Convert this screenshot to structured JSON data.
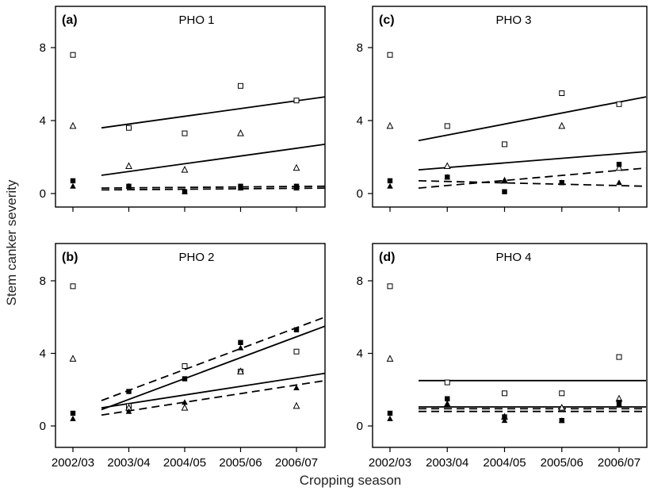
{
  "chart_data": {
    "type": "scatter",
    "ylabel": "Stem canker severity",
    "xlabel": "Cropping season",
    "categories": [
      "2002/03",
      "2003/04",
      "2004/05",
      "2005/06",
      "2006/07"
    ],
    "ylim": [
      -1,
      10
    ],
    "yticks": [
      0,
      4,
      8
    ],
    "panels": [
      {
        "label": "(a)",
        "title": "PHO 1",
        "points": {
          "open_square": [
            7.6,
            3.6,
            3.3,
            5.9,
            5.1
          ],
          "open_triangle": [
            3.7,
            1.5,
            1.3,
            3.3,
            1.4
          ],
          "filled_square": [
            0.7,
            0.4,
            0.1,
            0.4,
            0.4
          ],
          "filled_triangle": [
            0.4,
            0.4,
            0.1,
            0.3,
            0.3
          ]
        },
        "lines": [
          {
            "style": "solid",
            "y": [
              3.6,
              5.3
            ]
          },
          {
            "style": "solid",
            "y": [
              1.0,
              2.7
            ]
          },
          {
            "style": "dashed",
            "y": [
              0.3,
              0.4
            ]
          },
          {
            "style": "dashed",
            "y": [
              0.2,
              0.3
            ]
          }
        ]
      },
      {
        "label": "(b)",
        "title": "PHO 2",
        "points": {
          "open_square": [
            7.7,
            1.1,
            3.3,
            3.0,
            4.1
          ],
          "open_triangle": [
            3.7,
            1.0,
            1.0,
            3.0,
            1.1
          ],
          "filled_square": [
            0.7,
            1.9,
            2.6,
            4.6,
            5.3
          ],
          "filled_triangle": [
            0.4,
            0.8,
            1.3,
            4.3,
            2.1
          ]
        },
        "lines": [
          {
            "style": "dashed",
            "y": [
              1.4,
              6.0
            ]
          },
          {
            "style": "solid",
            "y": [
              0.9,
              5.5
            ]
          },
          {
            "style": "solid",
            "y": [
              1.0,
              2.9
            ]
          },
          {
            "style": "dashed",
            "y": [
              0.6,
              2.5
            ]
          }
        ]
      },
      {
        "label": "(c)",
        "title": "PHO 3",
        "points": {
          "open_square": [
            7.6,
            3.7,
            2.7,
            5.5,
            4.9
          ],
          "open_triangle": [
            3.7,
            1.5,
            0.7,
            3.7,
            1.4
          ],
          "filled_square": [
            0.7,
            0.9,
            0.1,
            0.6,
            1.6
          ],
          "filled_triangle": [
            0.4,
            0.9,
            0.7,
            0.6,
            0.6
          ]
        },
        "lines": [
          {
            "style": "solid",
            "y": [
              2.9,
              5.3
            ]
          },
          {
            "style": "solid",
            "y": [
              1.3,
              2.3
            ]
          },
          {
            "style": "dashed",
            "y": [
              0.3,
              1.4
            ]
          },
          {
            "style": "dashed",
            "y": [
              0.7,
              0.4
            ]
          }
        ]
      },
      {
        "label": "(d)",
        "title": "PHO 4",
        "points": {
          "open_square": [
            7.7,
            2.4,
            1.8,
            1.8,
            3.8
          ],
          "open_triangle": [
            3.7,
            1.2,
            0.5,
            1.0,
            1.5
          ],
          "filled_square": [
            0.7,
            1.5,
            0.5,
            0.3,
            1.3
          ],
          "filled_triangle": [
            0.4,
            1.2,
            0.3,
            0.3,
            1.2
          ]
        },
        "lines": [
          {
            "style": "solid",
            "y": [
              2.5,
              2.5
            ]
          },
          {
            "style": "solid",
            "y": [
              1.05,
              1.05
            ]
          },
          {
            "style": "dashed",
            "y": [
              0.95,
              0.95
            ]
          },
          {
            "style": "dashed",
            "y": [
              0.8,
              0.8
            ]
          }
        ]
      }
    ]
  }
}
